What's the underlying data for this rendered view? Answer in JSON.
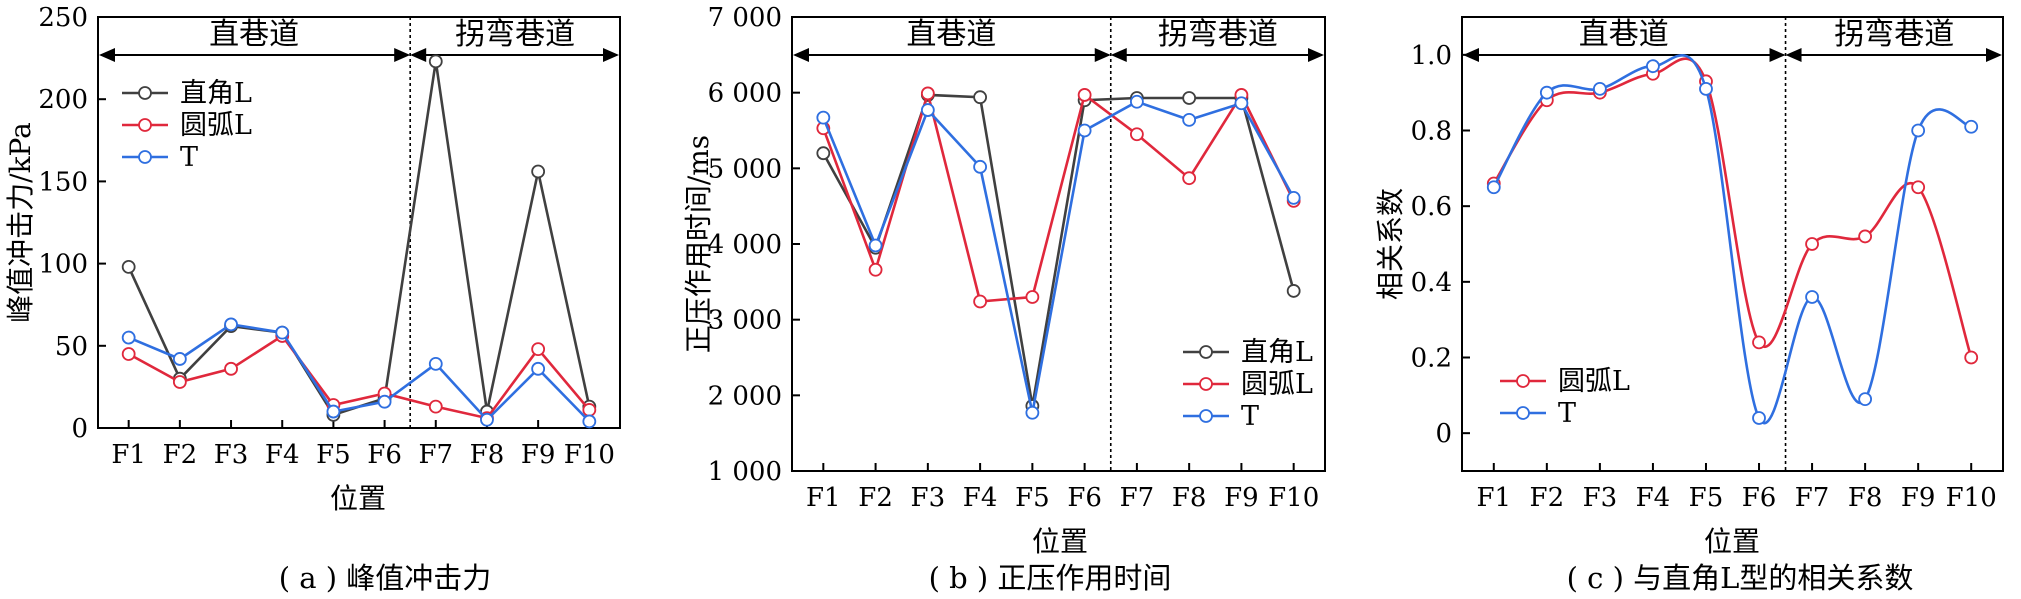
{
  "colors": {
    "right_angle_L": "#404040",
    "arc_L": "#e0283c",
    "T": "#2f6fe0"
  },
  "chart_data": [
    {
      "id": "a",
      "type": "line",
      "caption": "( a ) 峰值冲击力",
      "xlabel": "位置",
      "ylabel": "峰值冲击力/kPa",
      "categories": [
        "F1",
        "F2",
        "F3",
        "F4",
        "F5",
        "F6",
        "F7",
        "F8",
        "F9",
        "F10"
      ],
      "ylim": [
        0,
        250
      ],
      "yticks": [
        0,
        50,
        100,
        150,
        200,
        250
      ],
      "ytick_labels": [
        "0",
        "50",
        "100",
        "150",
        "200",
        "250"
      ],
      "regions": [
        {
          "label": "直巷道",
          "from": "F1",
          "to": "F6"
        },
        {
          "label": "拐弯巷道",
          "from": "F7",
          "to": "F10"
        }
      ],
      "smooth": false,
      "legend_position": "upper-left",
      "series": [
        {
          "name": "直角L",
          "color": "#404040",
          "values": [
            98,
            30,
            62,
            58,
            8,
            18,
            223,
            10,
            156,
            13
          ]
        },
        {
          "name": "圆弧L",
          "color": "#e0283c",
          "values": [
            45,
            28,
            36,
            56,
            14,
            21,
            13,
            6,
            48,
            11
          ]
        },
        {
          "name": "T",
          "color": "#2f6fe0",
          "values": [
            55,
            42,
            63,
            58,
            10,
            16,
            39,
            5,
            36,
            4
          ]
        }
      ]
    },
    {
      "id": "b",
      "type": "line",
      "caption": "( b ) 正压作用时间",
      "xlabel": "位置",
      "ylabel": "正压作用时间/ms",
      "categories": [
        "F1",
        "F2",
        "F3",
        "F4",
        "F5",
        "F6",
        "F7",
        "F8",
        "F9",
        "F10"
      ],
      "ylim": [
        1000,
        7000
      ],
      "yticks": [
        1000,
        2000,
        3000,
        4000,
        5000,
        6000,
        7000
      ],
      "ytick_labels": [
        "1 000",
        "2 000",
        "3 000",
        "4 000",
        "5 000",
        "6 000",
        "7 000"
      ],
      "regions": [
        {
          "label": "直巷道",
          "from": "F1",
          "to": "F6"
        },
        {
          "label": "拐弯巷道",
          "from": "F7",
          "to": "F10"
        }
      ],
      "smooth": false,
      "legend_position": "lower-right",
      "series": [
        {
          "name": "直角L",
          "color": "#404040",
          "values": [
            5200,
            3950,
            5970,
            5940,
            1860,
            5900,
            5930,
            5930,
            5930,
            3380
          ]
        },
        {
          "name": "圆弧L",
          "color": "#e0283c",
          "values": [
            5530,
            3660,
            5990,
            3240,
            3300,
            5970,
            5450,
            4870,
            5970,
            4570
          ]
        },
        {
          "name": "T",
          "color": "#2f6fe0",
          "values": [
            5670,
            3980,
            5770,
            5020,
            1770,
            5500,
            5880,
            5640,
            5860,
            4610
          ]
        }
      ]
    },
    {
      "id": "c",
      "type": "line",
      "caption": "( c ) 与直角L型的相关系数",
      "xlabel": "位置",
      "ylabel": "相关系数",
      "categories": [
        "F1",
        "F2",
        "F3",
        "F4",
        "F5",
        "F6",
        "F7",
        "F8",
        "F9",
        "F10"
      ],
      "ylim": [
        -0.1,
        1.1
      ],
      "yticks": [
        0.0,
        0.2,
        0.4,
        0.6,
        0.8,
        1.0
      ],
      "ytick_labels": [
        "0",
        "0.2",
        "0.4",
        "0.6",
        "0.8",
        "1.0"
      ],
      "regions": [
        {
          "label": "直巷道",
          "from": "F1",
          "to": "F6"
        },
        {
          "label": "拐弯巷道",
          "from": "F7",
          "to": "F10"
        }
      ],
      "smooth": true,
      "legend_position": "lower-left",
      "series": [
        {
          "name": "圆弧L",
          "color": "#e0283c",
          "values": [
            0.66,
            0.88,
            0.9,
            0.95,
            0.93,
            0.24,
            0.5,
            0.52,
            0.65,
            0.2
          ]
        },
        {
          "name": "T",
          "color": "#2f6fe0",
          "values": [
            0.65,
            0.9,
            0.91,
            0.97,
            0.91,
            0.04,
            0.36,
            0.09,
            0.8,
            0.81
          ]
        }
      ]
    }
  ]
}
